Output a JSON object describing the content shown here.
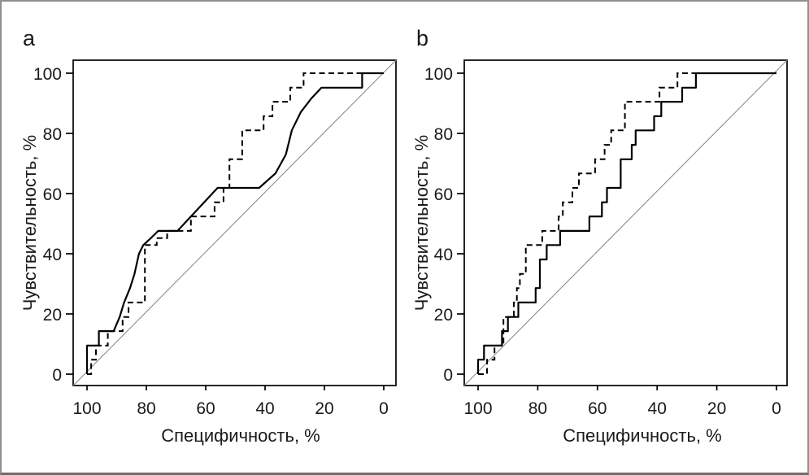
{
  "figure": {
    "background": "#ffffff",
    "border_color": "#8f8f8f",
    "curve_color": "#000000",
    "diagonal_color": "#8d8d8d"
  },
  "chart_data": [
    {
      "type": "line",
      "panel_label": "a",
      "xlabel": "Специфичность, %",
      "ylabel": "Чувствительность, %",
      "x_axis": {
        "ticks": [
          100,
          80,
          60,
          40,
          20,
          0
        ],
        "reversed": true,
        "range": [
          100,
          0
        ]
      },
      "y_axis": {
        "ticks": [
          0,
          20,
          40,
          60,
          80,
          100
        ],
        "range": [
          0,
          100
        ]
      },
      "grid": false,
      "legend": "none",
      "series": [
        {
          "name": "ROC curve (solid)",
          "line_style": "solid",
          "color": "#000000",
          "points": [
            [
              100,
              0
            ],
            [
              100,
              9.5
            ],
            [
              96,
              9.5
            ],
            [
              96,
              14.3
            ],
            [
              91,
              14.3
            ],
            [
              89,
              19
            ],
            [
              87.5,
              23.8
            ],
            [
              85.5,
              28.6
            ],
            [
              84,
              33.3
            ],
            [
              82.5,
              40
            ],
            [
              81,
              42.9
            ],
            [
              78.5,
              45.2
            ],
            [
              76,
              47.6
            ],
            [
              69.5,
              47.6
            ],
            [
              56,
              61.9
            ],
            [
              42,
              61.9
            ],
            [
              36.5,
              66.7
            ],
            [
              33,
              73
            ],
            [
              31,
              81
            ],
            [
              28,
              87
            ],
            [
              24.5,
              91.5
            ],
            [
              21,
              95.2
            ],
            [
              7.3,
              95.2
            ],
            [
              7.3,
              100
            ],
            [
              0,
              100
            ]
          ]
        },
        {
          "name": "ROC curve (dashed)",
          "line_style": "dashed",
          "color": "#000000",
          "points": [
            [
              100,
              0
            ],
            [
              98.6,
              0
            ],
            [
              98.6,
              4.8
            ],
            [
              97,
              4.8
            ],
            [
              97,
              9.5
            ],
            [
              93,
              9.5
            ],
            [
              93,
              14.3
            ],
            [
              88,
              14.3
            ],
            [
              88,
              19
            ],
            [
              86,
              19
            ],
            [
              86,
              23.8
            ],
            [
              80.5,
              23.8
            ],
            [
              80.5,
              42.9
            ],
            [
              76.5,
              42.9
            ],
            [
              76.5,
              45.2
            ],
            [
              73,
              45.2
            ],
            [
              73,
              47.6
            ],
            [
              65,
              47.6
            ],
            [
              65,
              52.4
            ],
            [
              57,
              52.4
            ],
            [
              57,
              57.1
            ],
            [
              54,
              57.1
            ],
            [
              54,
              61.9
            ],
            [
              52,
              61.9
            ],
            [
              52,
              71.4
            ],
            [
              47.7,
              71.4
            ],
            [
              47.7,
              81
            ],
            [
              40.5,
              81
            ],
            [
              40.5,
              85.7
            ],
            [
              37.5,
              85.7
            ],
            [
              37.5,
              90.5
            ],
            [
              31.5,
              90.5
            ],
            [
              31.5,
              95.2
            ],
            [
              27,
              95.2
            ],
            [
              27,
              100
            ],
            [
              0,
              100
            ]
          ]
        },
        {
          "name": "chance diagonal",
          "role": "reference",
          "line_style": "thin",
          "color": "#8d8d8d",
          "points": [
            [
              100,
              0
            ],
            [
              0,
              100
            ]
          ]
        }
      ]
    },
    {
      "type": "line",
      "panel_label": "b",
      "xlabel": "Специфичность, %",
      "ylabel": "Чувствительность, %",
      "x_axis": {
        "ticks": [
          100,
          80,
          60,
          40,
          20,
          0
        ],
        "reversed": true,
        "range": [
          100,
          0
        ]
      },
      "y_axis": {
        "ticks": [
          0,
          20,
          40,
          60,
          80,
          100
        ],
        "range": [
          0,
          100
        ]
      },
      "grid": false,
      "legend": "none",
      "series": [
        {
          "name": "ROC curve (solid)",
          "line_style": "solid",
          "color": "#000000",
          "points": [
            [
              100,
              0
            ],
            [
              100,
              4.8
            ],
            [
              98,
              4.8
            ],
            [
              98,
              9.5
            ],
            [
              92,
              9.5
            ],
            [
              92,
              14.3
            ],
            [
              90,
              14.3
            ],
            [
              90,
              19
            ],
            [
              86.5,
              19
            ],
            [
              86.5,
              23.8
            ],
            [
              80.7,
              23.8
            ],
            [
              80.7,
              28.6
            ],
            [
              79.3,
              28.6
            ],
            [
              79.3,
              38.1
            ],
            [
              77,
              38.1
            ],
            [
              77,
              42.9
            ],
            [
              72.5,
              42.9
            ],
            [
              72.5,
              47.6
            ],
            [
              62.7,
              47.6
            ],
            [
              62.7,
              52.4
            ],
            [
              58.5,
              52.4
            ],
            [
              58.5,
              57.1
            ],
            [
              56.8,
              57.1
            ],
            [
              56.8,
              61.9
            ],
            [
              52.2,
              61.9
            ],
            [
              52.2,
              71.4
            ],
            [
              48.5,
              71.4
            ],
            [
              48.5,
              76.2
            ],
            [
              47.2,
              76.2
            ],
            [
              47.2,
              81
            ],
            [
              41,
              81
            ],
            [
              41,
              85.7
            ],
            [
              38.6,
              85.7
            ],
            [
              38.6,
              90.5
            ],
            [
              31.6,
              90.5
            ],
            [
              31.6,
              95.2
            ],
            [
              27,
              95.2
            ],
            [
              27,
              100
            ],
            [
              0,
              100
            ]
          ]
        },
        {
          "name": "ROC curve (dashed)",
          "line_style": "dashed",
          "color": "#000000",
          "points": [
            [
              100,
              0
            ],
            [
              97,
              0
            ],
            [
              97,
              4.8
            ],
            [
              94.5,
              4.8
            ],
            [
              94.5,
              9.5
            ],
            [
              91.5,
              9.5
            ],
            [
              91.5,
              19
            ],
            [
              88,
              19
            ],
            [
              88,
              23.8
            ],
            [
              87,
              23.8
            ],
            [
              87,
              28.6
            ],
            [
              86,
              28.6
            ],
            [
              86,
              33.3
            ],
            [
              84,
              33.3
            ],
            [
              84,
              42.9
            ],
            [
              78.5,
              42.9
            ],
            [
              78.5,
              47.6
            ],
            [
              73,
              47.6
            ],
            [
              73,
              52.4
            ],
            [
              71.6,
              52.4
            ],
            [
              71.6,
              57.1
            ],
            [
              68.4,
              57.1
            ],
            [
              68.4,
              61.9
            ],
            [
              66.2,
              61.9
            ],
            [
              66.2,
              66.7
            ],
            [
              60.8,
              66.7
            ],
            [
              60.8,
              71.4
            ],
            [
              57.6,
              71.4
            ],
            [
              57.6,
              76.2
            ],
            [
              55.4,
              76.2
            ],
            [
              55.4,
              81
            ],
            [
              50.8,
              81
            ],
            [
              50.8,
              90.5
            ],
            [
              39.2,
              90.5
            ],
            [
              39.2,
              95.2
            ],
            [
              33.2,
              95.2
            ],
            [
              33.2,
              100
            ],
            [
              0,
              100
            ]
          ]
        },
        {
          "name": "chance diagonal",
          "role": "reference",
          "line_style": "thin",
          "color": "#8d8d8d",
          "points": [
            [
              100,
              0
            ],
            [
              0,
              100
            ]
          ]
        }
      ]
    }
  ]
}
